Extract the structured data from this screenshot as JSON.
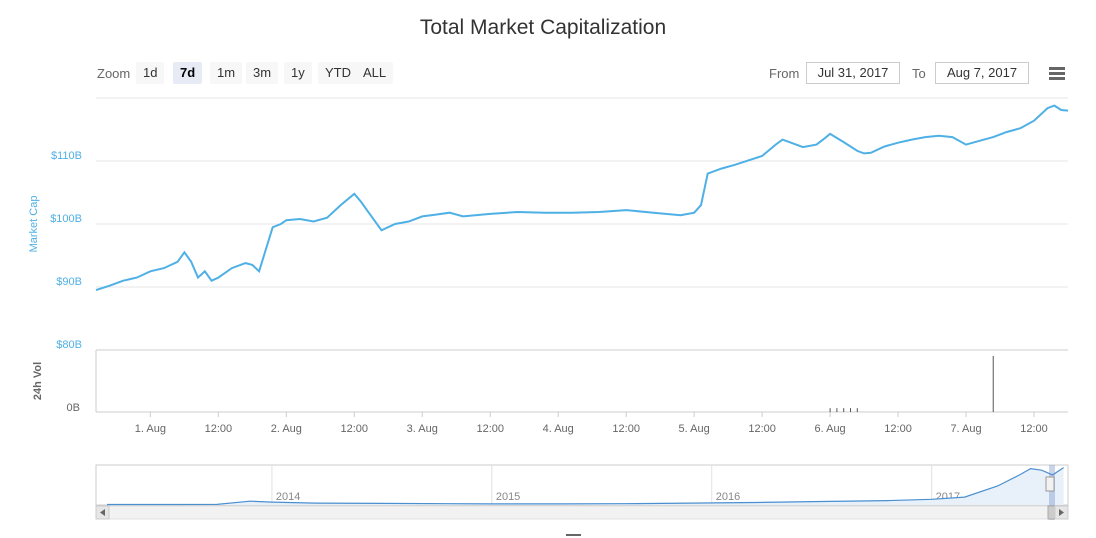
{
  "title": "Total Market Capitalization",
  "zoom": {
    "label": "Zoom",
    "buttons": [
      "1d",
      "7d",
      "1m",
      "3m",
      "1y",
      "YTD",
      "ALL"
    ],
    "active": "7d"
  },
  "range": {
    "from_label": "From",
    "from_value": "Jul 31, 2017",
    "to_label": "To",
    "to_value": "Aug 7, 2017"
  },
  "colors": {
    "line": "#4fb0e5",
    "axis_label": "#4fb0e5",
    "grid": "#e6e6e6",
    "volume_bar": "#555555"
  },
  "chart_data": [
    {
      "type": "line",
      "ylabel": "Market Cap",
      "ylim": [
        80,
        120
      ],
      "y_ticks": [
        "$80B",
        "$90B",
        "$100B",
        "$110B"
      ],
      "y_tick_values": [
        80,
        90,
        100,
        110
      ],
      "x_range": [
        0.6,
        7.75
      ],
      "x_ticks": [
        "1. Aug",
        "12:00",
        "2. Aug",
        "12:00",
        "3. Aug",
        "12:00",
        "4. Aug",
        "12:00",
        "5. Aug",
        "12:00",
        "6. Aug",
        "12:00",
        "7. Aug",
        "12:00"
      ],
      "x_tick_values": [
        1,
        1.5,
        2,
        2.5,
        3,
        3.5,
        4,
        4.5,
        5,
        5.5,
        6,
        6.5,
        7,
        7.5
      ],
      "grid": true,
      "series": [
        {
          "x": [
            0.6,
            0.7,
            0.8,
            0.9,
            1.0,
            1.1,
            1.2,
            1.25,
            1.3,
            1.35,
            1.4,
            1.45,
            1.5,
            1.6,
            1.7,
            1.75,
            1.8,
            1.9,
            1.96,
            2.0,
            2.1,
            2.2,
            2.3,
            2.4,
            2.5,
            2.55,
            2.6,
            2.7,
            2.8,
            2.9,
            3.0,
            3.1,
            3.2,
            3.3,
            3.5,
            3.7,
            3.9,
            4.1,
            4.3,
            4.5,
            4.7,
            4.9,
            5.0,
            5.05,
            5.1,
            5.2,
            5.3,
            5.5,
            5.6,
            5.65,
            5.7,
            5.8,
            5.9,
            5.96,
            6.0,
            6.1,
            6.2,
            6.25,
            6.3,
            6.4,
            6.5,
            6.6,
            6.7,
            6.8,
            6.9,
            7.0,
            7.1,
            7.2,
            7.3,
            7.4,
            7.5,
            7.6,
            7.65,
            7.7,
            7.75
          ],
          "values": [
            89.5,
            90.2,
            91.0,
            91.5,
            92.5,
            93.0,
            94.0,
            95.5,
            94.0,
            91.5,
            92.5,
            91.0,
            91.5,
            93.0,
            93.8,
            93.5,
            92.5,
            99.5,
            100.0,
            100.6,
            100.8,
            100.4,
            101.0,
            103.0,
            104.8,
            103.5,
            102.0,
            99.0,
            100.0,
            100.4,
            101.2,
            101.5,
            101.8,
            101.2,
            101.6,
            101.9,
            101.8,
            101.8,
            101.9,
            102.2,
            101.8,
            101.4,
            101.8,
            103.0,
            108.0,
            108.8,
            109.4,
            110.8,
            112.6,
            113.4,
            113.0,
            112.2,
            112.6,
            113.6,
            114.3,
            113.0,
            111.6,
            111.2,
            111.3,
            112.3,
            112.9,
            113.4,
            113.8,
            114.0,
            113.8,
            112.6,
            113.2,
            113.8,
            114.6,
            115.2,
            116.4,
            118.4,
            118.8,
            118.1,
            118.0
          ]
        }
      ]
    },
    {
      "type": "bar",
      "ylabel": "24h Vol",
      "y_ticks": [
        "0B"
      ],
      "x": [
        6.0,
        6.05,
        6.1,
        6.15,
        6.2,
        7.2
      ],
      "values": [
        0.4,
        0.4,
        0.4,
        0.4,
        0.4,
        5.8
      ],
      "ylim": [
        0,
        6
      ]
    },
    {
      "type": "area",
      "role": "navigator",
      "x_ticks": [
        "2014",
        "2015",
        "2016",
        "2017"
      ],
      "x": [
        2013.25,
        2013.5,
        2013.75,
        2013.9,
        2014.0,
        2014.2,
        2014.5,
        2014.8,
        2015.0,
        2015.3,
        2015.6,
        2015.9,
        2016.2,
        2016.5,
        2016.8,
        2017.0,
        2017.15,
        2017.3,
        2017.4,
        2017.45,
        2017.5,
        2017.55,
        2017.6
      ],
      "values": [
        1.5,
        1.6,
        2.0,
        12.0,
        9.0,
        6.0,
        5.0,
        4.0,
        3.5,
        3.5,
        4.0,
        6.0,
        8.0,
        11.0,
        14.0,
        18.0,
        25.0,
        60.0,
        95.0,
        115.0,
        110.0,
        95.0,
        118.0
      ]
    }
  ]
}
